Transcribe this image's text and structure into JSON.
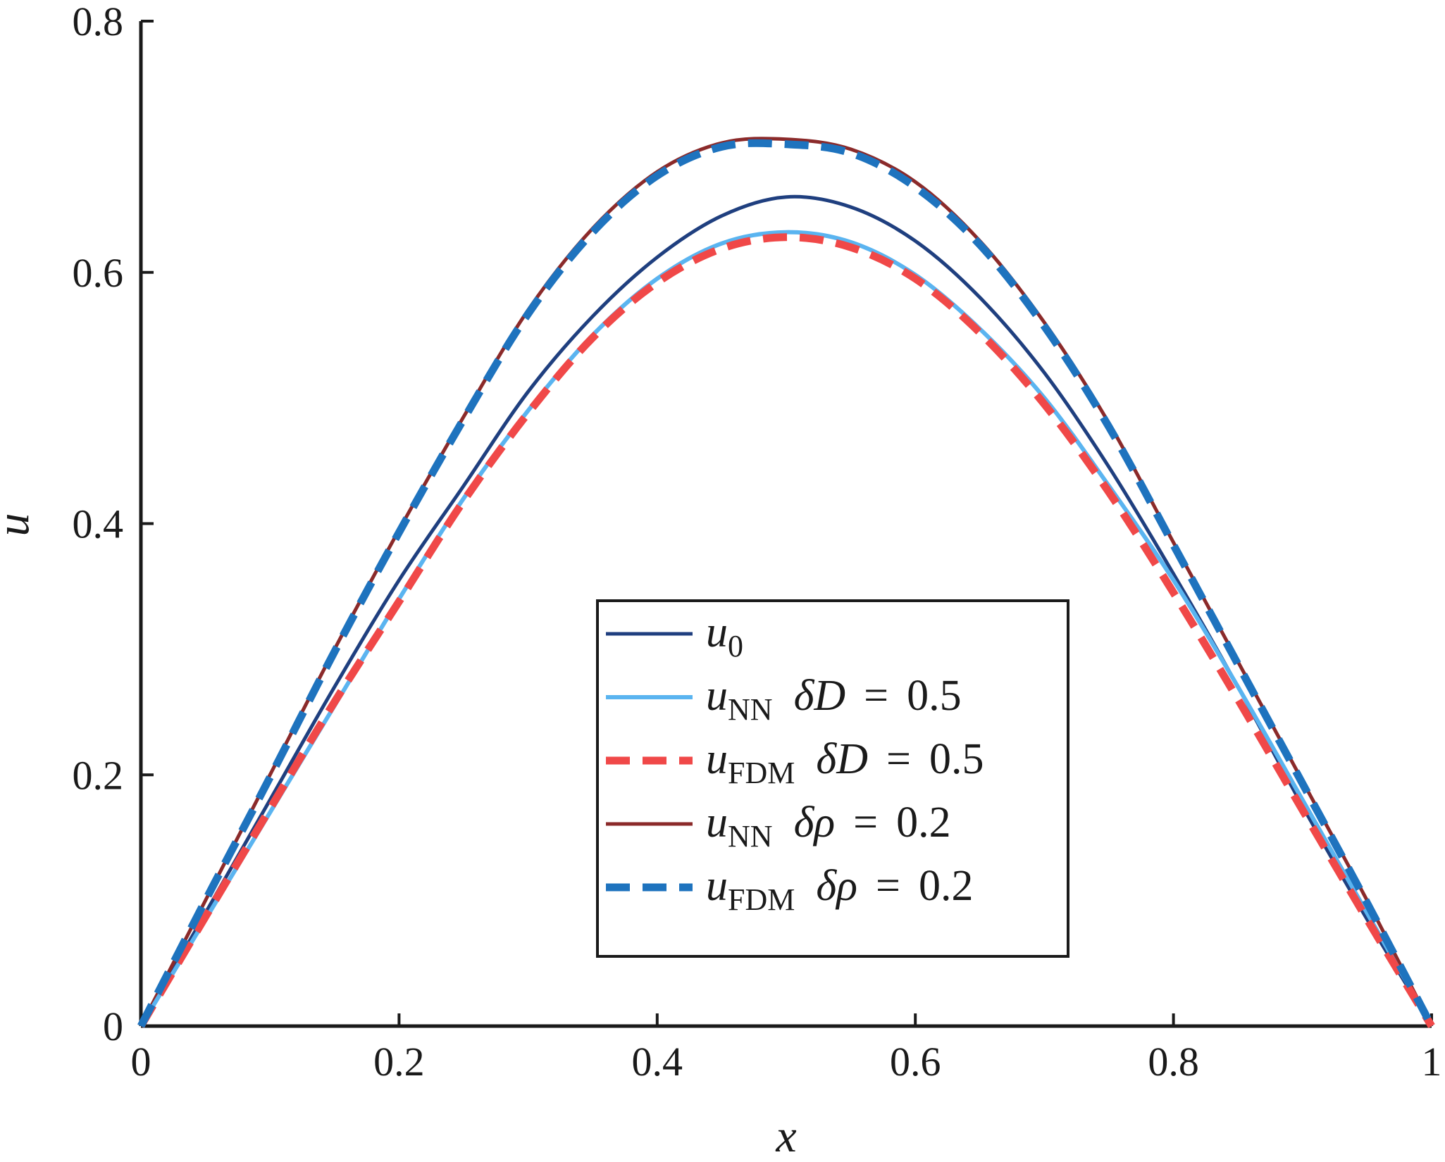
{
  "chart_data": {
    "type": "line",
    "title": "",
    "xlabel": "x",
    "ylabel": "u",
    "xlim": [
      0,
      1
    ],
    "ylim": [
      0,
      0.8
    ],
    "xticks": [
      "0",
      "0.2",
      "0.4",
      "0.6",
      "0.8",
      "1"
    ],
    "yticks": [
      "0",
      "0.2",
      "0.4",
      "0.6",
      "0.8"
    ],
    "grid": false,
    "legend_position": "bottom-center",
    "x": [
      0,
      0.05,
      0.1,
      0.15,
      0.2,
      0.25,
      0.3,
      0.35,
      0.4,
      0.45,
      0.5,
      0.55,
      0.6,
      0.65,
      0.7,
      0.75,
      0.8,
      0.85,
      0.9,
      0.95,
      1
    ],
    "series": [
      {
        "name": "u0",
        "legend": {
          "symbol": "u",
          "sub": "0",
          "param": "",
          "eq": "",
          "value": ""
        },
        "color": "#1f3f7f",
        "style": "solid",
        "width": 5,
        "values": [
          0,
          0.09,
          0.18,
          0.27,
          0.355,
          0.43,
          0.505,
          0.565,
          0.612,
          0.645,
          0.66,
          0.652,
          0.625,
          0.58,
          0.52,
          0.445,
          0.36,
          0.27,
          0.175,
          0.085,
          0
        ]
      },
      {
        "name": "uNN δD = 0.5",
        "legend": {
          "symbol": "u",
          "sub": "NN",
          "param": "δD",
          "eq": "=",
          "value": "0.5"
        },
        "color": "#5ab4f0",
        "style": "solid",
        "width": 6,
        "values": [
          0,
          0.085,
          0.17,
          0.255,
          0.34,
          0.42,
          0.49,
          0.55,
          0.595,
          0.623,
          0.632,
          0.624,
          0.598,
          0.555,
          0.5,
          0.43,
          0.355,
          0.27,
          0.18,
          0.09,
          0
        ]
      },
      {
        "name": "uFDM δD = 0.5",
        "legend": {
          "symbol": "u",
          "sub": "FDM",
          "param": "δD",
          "eq": "=",
          "value": "0.5"
        },
        "color": "#f04848",
        "style": "dashed",
        "width": 11,
        "values": [
          0,
          0.087,
          0.173,
          0.258,
          0.338,
          0.418,
          0.488,
          0.548,
          0.592,
          0.619,
          0.628,
          0.62,
          0.595,
          0.552,
          0.495,
          0.425,
          0.345,
          0.26,
          0.172,
          0.085,
          0
        ]
      },
      {
        "name": "uNN δρ = 0.2",
        "legend": {
          "symbol": "u",
          "sub": "NN",
          "param": "δρ",
          "eq": "=",
          "value": "0.2"
        },
        "color": "#8b2a2a",
        "style": "solid",
        "width": 5,
        "values": [
          0,
          0.1,
          0.2,
          0.3,
          0.395,
          0.485,
          0.57,
          0.635,
          0.68,
          0.703,
          0.706,
          0.698,
          0.672,
          0.625,
          0.56,
          0.48,
          0.385,
          0.29,
          0.195,
          0.1,
          0
        ]
      },
      {
        "name": "uFDM δρ = 0.2",
        "legend": {
          "symbol": "u",
          "sub": "FDM",
          "param": "δρ",
          "eq": "=",
          "value": "0.2"
        },
        "color": "#1e73be",
        "style": "dashed",
        "width": 11,
        "values": [
          0,
          0.1,
          0.198,
          0.298,
          0.393,
          0.483,
          0.567,
          0.632,
          0.677,
          0.7,
          0.702,
          0.695,
          0.668,
          0.622,
          0.557,
          0.477,
          0.383,
          0.288,
          0.193,
          0.098,
          0
        ]
      }
    ]
  }
}
